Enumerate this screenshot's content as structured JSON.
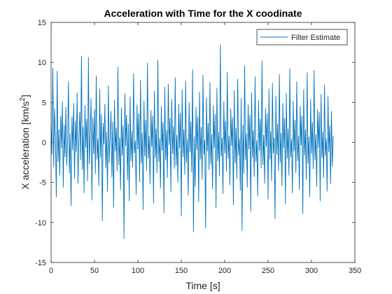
{
  "chart_data": {
    "type": "line",
    "title": "Acceleration with Time for the X coodinate",
    "xlabel": "Time [s]",
    "ylabel_main": "X acceleration [km/s",
    "ylabel_sup": "2",
    "ylabel_tail": "]",
    "xlim": [
      0,
      350
    ],
    "ylim": [
      -15,
      15
    ],
    "xticks": [
      0,
      50,
      100,
      150,
      200,
      250,
      300,
      350
    ],
    "yticks": [
      -15,
      -10,
      -5,
      0,
      5,
      10,
      15
    ],
    "grid": false,
    "legend": {
      "position": "top-right",
      "entries": [
        "Filter Estimate"
      ]
    },
    "line_color": "#0072BD",
    "series": [
      {
        "name": "Filter Estimate",
        "x_start": 0,
        "x_step": 1,
        "values": [
          2.1,
          -1.5,
          9.3,
          -3.1,
          4.2,
          0.8,
          -6.8,
          8.9,
          -2.4,
          1.6,
          -4.1,
          3.3,
          -0.7,
          5.1,
          -5.6,
          2.2,
          -1.8,
          4.4,
          -2.9,
          0.5,
          7.6,
          -3.8,
          1.1,
          -7.9,
          3.2,
          -0.9,
          4.9,
          -4.5,
          2.7,
          -1.2,
          6.2,
          -5.1,
          0.3,
          3.8,
          -2.2,
          10.8,
          -3.4,
          1.9,
          -6.3,
          4.6,
          -0.6,
          2.9,
          -4.8,
          10.6,
          -2.7,
          0.9,
          5.5,
          -7.2,
          3.1,
          -1.4,
          4.1,
          -3.9,
          8.3,
          -2.1,
          0.4,
          -5.4,
          6.7,
          -1.9,
          3.5,
          -9.8,
          2.4,
          -0.2,
          4.8,
          -3.2,
          1.3,
          -6.1,
          7.1,
          -2.5,
          0.7,
          3.9,
          -4.3,
          2.6,
          -8.1,
          5.3,
          -1.1,
          1.8,
          -3.6,
          9.4,
          -2.8,
          0.6,
          -5.9,
          4.3,
          -1.6,
          2.1,
          -12.0,
          6.1,
          -0.4,
          3.4,
          -4.7,
          2.3,
          -7.3,
          5.7,
          -2.3,
          1.4,
          -3.1,
          8.6,
          -1.3,
          0.2,
          -6.5,
          4.7,
          -0.8,
          3.6,
          -4.9,
          7.8,
          -2.6,
          1.2,
          -8.4,
          5.2,
          -1.7,
          2.8,
          -3.5,
          9.9,
          -2.0,
          0.8,
          -5.2,
          4.0,
          -0.5,
          3.3,
          -7.6,
          6.4,
          -1.9,
          1.7,
          -3.8,
          10.3,
          -2.4,
          0.5,
          -5.7,
          4.5,
          -1.0,
          2.5,
          -8.8,
          6.9,
          -2.2,
          1.5,
          -4.4,
          7.3,
          -0.3,
          3.0,
          -6.2,
          5.4,
          -1.4,
          2.0,
          -3.3,
          8.1,
          -2.9,
          0.9,
          -5.0,
          4.8,
          -0.7,
          3.7,
          -9.2,
          6.6,
          -1.8,
          1.6,
          -4.0,
          7.7,
          -2.5,
          0.4,
          -6.6,
          5.0,
          -1.2,
          2.6,
          -3.7,
          9.1,
          -11.2,
          0.7,
          -5.5,
          4.4,
          -0.9,
          3.2,
          -7.4,
          6.3,
          -2.1,
          1.9,
          -4.6,
          8.4,
          -1.5,
          0.3,
          -10.7,
          5.6,
          -1.1,
          2.4,
          -3.4,
          7.5,
          -2.7,
          1.0,
          -5.8,
          4.6,
          -0.6,
          3.5,
          -8.2,
          6.8,
          -2.3,
          1.3,
          -4.2,
          12.2,
          -1.7,
          0.6,
          -6.4,
          5.1,
          -1.3,
          2.7,
          -3.6,
          8.8,
          -2.0,
          0.8,
          -5.3,
          4.2,
          -0.4,
          3.1,
          -7.8,
          6.5,
          -2.6,
          1.8,
          -4.5,
          7.9,
          -1.6,
          0.5,
          -6.0,
          5.5,
          -11.0,
          2.2,
          -3.9,
          9.6,
          -2.2,
          1.1,
          -5.6,
          4.7,
          -0.8,
          3.4,
          -8.6,
          6.2,
          -1.9,
          1.5,
          -4.3,
          8.2,
          -2.4,
          0.2,
          -6.7,
          5.3,
          -1.0,
          2.9,
          -3.2,
          10.2,
          -2.8,
          0.9,
          -5.1,
          4.3,
          -0.5,
          3.6,
          -7.1,
          6.7,
          -2.1,
          1.4,
          -4.8,
          7.4,
          -1.3,
          0.6,
          -9.5,
          5.8,
          -1.5,
          2.3,
          -3.5,
          8.5,
          -2.5,
          1.2,
          -5.4,
          4.9,
          -0.7,
          3.0,
          -7.7,
          6.1,
          -2.0,
          1.7,
          -4.1,
          9.2,
          -1.8,
          0.4,
          -6.3,
          5.2,
          -1.1,
          2.8,
          -3.8,
          7.6,
          -2.3,
          0.8,
          -5.9,
          4.5,
          -0.3,
          3.3,
          -8.9,
          6.6,
          -1.6,
          1.6,
          -4.6,
          8.7,
          -2.6,
          0.7,
          -6.8,
          5.4,
          -1.4,
          2.5,
          -3.3,
          9.0,
          -2.2,
          1.0,
          -5.5,
          4.1,
          -0.6,
          3.8,
          -7.3,
          6.0,
          -1.9,
          1.3,
          -4.4,
          7.2,
          -1.7,
          0.5,
          -6.1,
          5.7,
          -1.2,
          2.1,
          -5.2,
          3.9,
          -3.0,
          0.8
        ]
      }
    ]
  }
}
